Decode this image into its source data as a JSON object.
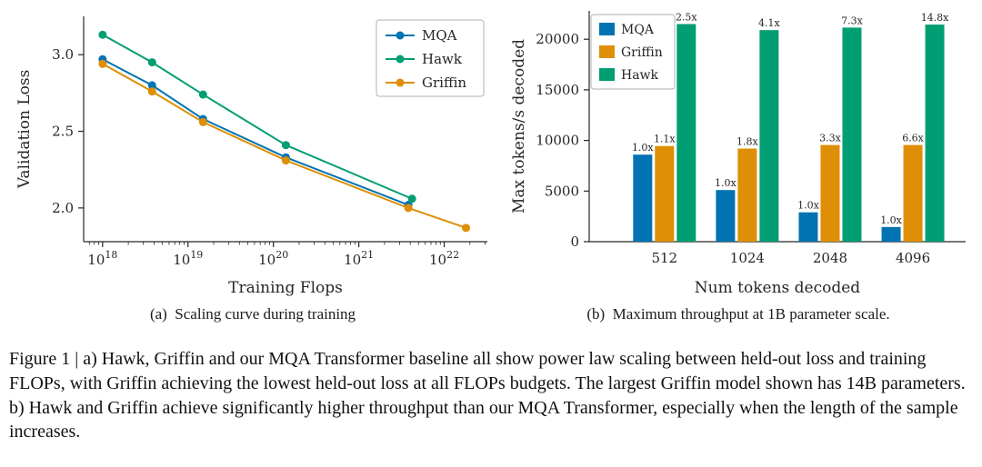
{
  "figure": {
    "subcaption_a": "(a)  Scaling curve during training",
    "subcaption_b": "(b)  Maximum throughput at 1B parameter scale.",
    "caption": "Figure 1 | a) Hawk, Griffin and our MQA Transformer baseline all show power law scaling between held-out loss and training FLOPs, with Griffin achieving the lowest held-out loss at all FLOPs budgets. The largest Griffin model shown has 14B parameters. b) Hawk and Griffin achieve significantly higher throughput than our MQA Transformer, especially when the length of the sample increases."
  },
  "colors": {
    "mqa": "#0173B2",
    "hawk": "#029E73",
    "griffin": "#DE8F05"
  },
  "chart_data": [
    {
      "type": "line",
      "title": "",
      "xlabel": "Training Flops",
      "ylabel": "Validation Loss",
      "xscale": "log",
      "xlim": [
        6e+17,
        3.2e+22
      ],
      "ylim": [
        1.78,
        3.25
      ],
      "xticks": [
        1e+18,
        1e+19,
        1e+20,
        1e+21,
        1e+22
      ],
      "xtick_labels": [
        "10^18",
        "10^19",
        "10^20",
        "10^21",
        "10^22"
      ],
      "yticks": [
        2.0,
        2.5,
        3.0
      ],
      "grid": false,
      "legend": [
        "MQA",
        "Hawk",
        "Griffin"
      ],
      "legend_position": "top-right",
      "series": [
        {
          "name": "MQA",
          "color_key": "mqa",
          "points": [
            [
              1e+18,
              2.97
            ],
            [
              3.8e+18,
              2.8
            ],
            [
              1.5e+19,
              2.58
            ],
            [
              1.4e+20,
              2.33
            ],
            [
              3.8e+21,
              2.02
            ]
          ]
        },
        {
          "name": "Hawk",
          "color_key": "hawk",
          "points": [
            [
              1e+18,
              3.13
            ],
            [
              3.8e+18,
              2.95
            ],
            [
              1.5e+19,
              2.74
            ],
            [
              1.4e+20,
              2.41
            ],
            [
              4.2e+21,
              2.06
            ]
          ]
        },
        {
          "name": "Griffin",
          "color_key": "griffin",
          "points": [
            [
              1e+18,
              2.94
            ],
            [
              3.8e+18,
              2.76
            ],
            [
              1.5e+19,
              2.56
            ],
            [
              1.4e+20,
              2.31
            ],
            [
              3.8e+21,
              2.0
            ],
            [
              1.8e+22,
              1.87
            ]
          ]
        }
      ]
    },
    {
      "type": "bar",
      "title": "",
      "xlabel": "Num tokens decoded",
      "ylabel": "Max tokens/s decoded",
      "categories": [
        "512",
        "1024",
        "2048",
        "4096"
      ],
      "yticks": [
        0,
        5000,
        10000,
        15000,
        20000
      ],
      "ylim": [
        0,
        22800
      ],
      "grid": false,
      "legend": [
        "MQA",
        "Griffin",
        "Hawk"
      ],
      "legend_position": "top-left",
      "series": [
        {
          "name": "MQA",
          "color_key": "mqa",
          "values": [
            8600,
            5100,
            2900,
            1450
          ],
          "labels": [
            "1.0x",
            "1.0x",
            "1.0x",
            "1.0x"
          ]
        },
        {
          "name": "Griffin",
          "color_key": "griffin",
          "values": [
            9450,
            9200,
            9550,
            9550
          ],
          "labels": [
            "1.1x",
            "1.8x",
            "3.3x",
            "6.6x"
          ]
        },
        {
          "name": "Hawk",
          "color_key": "hawk",
          "values": [
            21500,
            20900,
            21150,
            21450
          ],
          "labels": [
            "2.5x",
            "4.1x",
            "7.3x",
            "14.8x"
          ]
        }
      ]
    }
  ]
}
